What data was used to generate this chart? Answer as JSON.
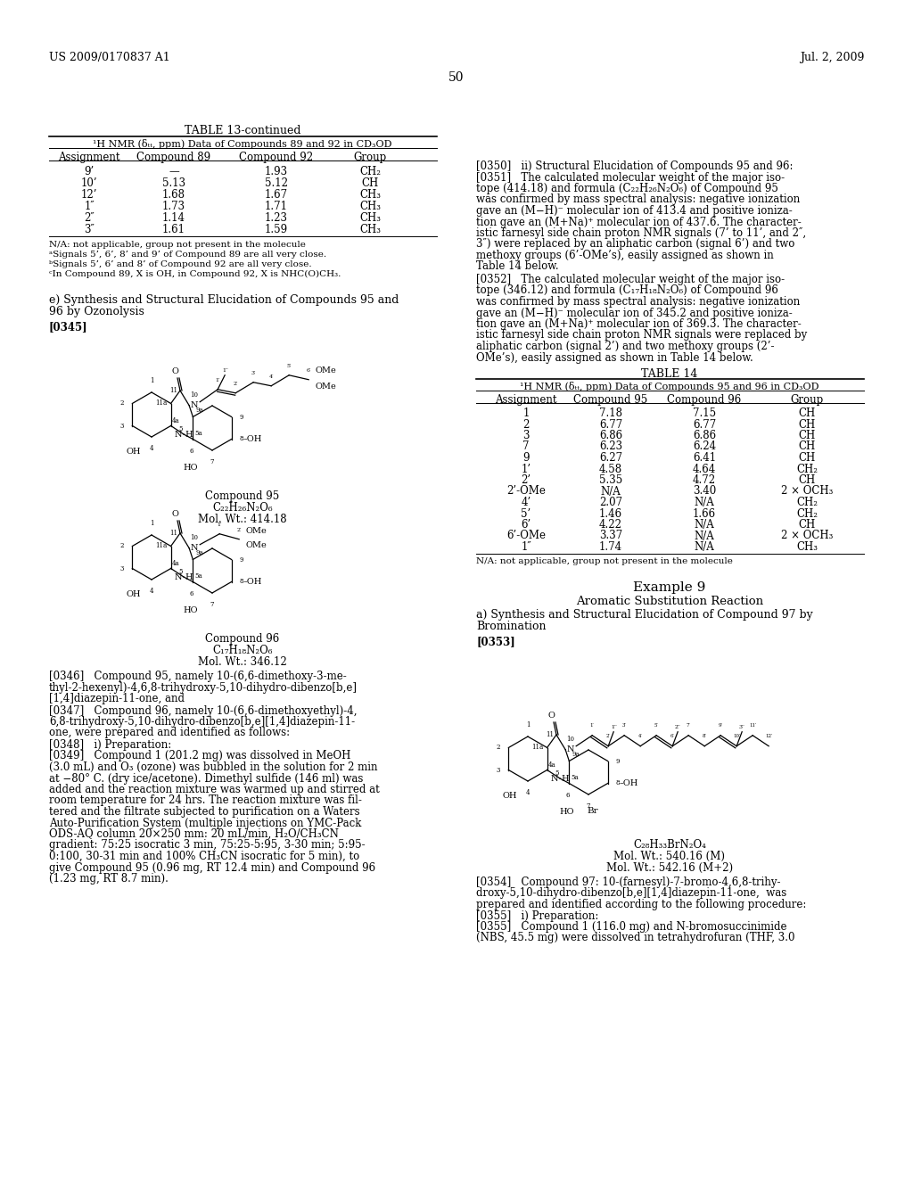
{
  "page_header_left": "US 2009/0170837 A1",
  "page_header_right": "Jul. 2, 2009",
  "page_number": "50",
  "background_color": "#ffffff",
  "table13_title": "TABLE 13-continued",
  "table13_subtitle": "¹H NMR (δₜₜ, ppm) Data of Compounds 89 and 92 in CD₃OD",
  "table13_headers": [
    "Assignment",
    "Compound 89",
    "Compound 92",
    "Group"
  ],
  "table13_rows": [
    [
      "9’",
      "—",
      "1.93",
      "CH₂"
    ],
    [
      "10’",
      "5.13",
      "5.12",
      "CH"
    ],
    [
      "12’",
      "1.68",
      "1.67",
      "CH₃"
    ],
    [
      "1″",
      "1.73",
      "1.71",
      "CH₃"
    ],
    [
      "2″",
      "1.14",
      "1.23",
      "CH₃"
    ],
    [
      "3″",
      "1.61",
      "1.59",
      "CH₃"
    ]
  ],
  "table13_footnotes": [
    "N/A: not applicable, group not present in the molecule",
    "ᵃSignals 5’, 6’, 8’ and 9’ of Compound 89 are all very close.",
    "ᵇSignals 5’, 6’ and 8’ of Compound 92 are all very close.",
    "ᶜIn Compound 89, X is OH, in Compound 92, X is NHC(O)CH₃."
  ],
  "compound95_label": "Compound 95",
  "compound95_formula": "C₂₂H₂₆N₂O₆",
  "compound95_mw": "Mol. Wt.: 414.18",
  "compound96_label": "Compound 96",
  "compound96_formula": "C₁₇H₁₈N₂O₆",
  "compound96_mw": "Mol. Wt.: 346.12",
  "right_para0350": "[0350]   ii) Structural Elucidation of Compounds 95 and 96:",
  "right_para0351_lines": [
    "[0351]   The calculated molecular weight of the major iso-",
    "tope (414.18) and formula (C₂₂H₂₆N₂O₆) of Compound 95",
    "was confirmed by mass spectral analysis: negative ionization",
    "gave an (M−H)⁻ molecular ion of 413.4 and positive ioniza-",
    "tion gave an (M+Na)⁺ molecular ion of 437.6. The character-",
    "istic farnesyl side chain proton NMR signals (7’ to 11’, and 2″,",
    "3″) were replaced by an aliphatic carbon (signal 6’) and two",
    "methoxy groups (6’-OMe’s), easily assigned as shown in",
    "Table 14 below."
  ],
  "right_para0352_lines": [
    "[0352]   The calculated molecular weight of the major iso-",
    "tope (346.12) and formula (C₁₇H₁₈N₂O₆) of Compound 96",
    "was confirmed by mass spectral analysis: negative ionization",
    "gave an (M−H)⁻ molecular ion of 345.2 and positive ioniza-",
    "tion gave an (M+Na)⁺ molecular ion of 369.3. The character-",
    "istic farnesyl side chain proton NMR signals were replaced by",
    "aliphatic carbon (signal 2’) and two methoxy groups (2’-",
    "OMe’s), easily assigned as shown in Table 14 below."
  ],
  "table14_title": "TABLE 14",
  "table14_subtitle": "¹H NMR (δₜₜ, ppm) Data of Compounds 95 and 96 in CD₃OD",
  "table14_headers": [
    "Assignment",
    "Compound 95",
    "Compound 96",
    "Group"
  ],
  "table14_rows": [
    [
      "1",
      "7.18",
      "7.15",
      "CH"
    ],
    [
      "2",
      "6.77",
      "6.77",
      "CH"
    ],
    [
      "3",
      "6.86",
      "6.86",
      "CH"
    ],
    [
      "7",
      "6.23",
      "6.24",
      "CH"
    ],
    [
      "9",
      "6.27",
      "6.41",
      "CH"
    ],
    [
      "1’",
      "4.58",
      "4.64",
      "CH₂"
    ],
    [
      "2’",
      "5.35",
      "4.72",
      "CH"
    ],
    [
      "2’-OMe",
      "N/A",
      "3.40",
      "2 × OCH₃"
    ],
    [
      "4’",
      "2.07",
      "N/A",
      "CH₂"
    ],
    [
      "5’",
      "1.46",
      "1.66",
      "CH₂"
    ],
    [
      "6’",
      "4.22",
      "N/A",
      "CH"
    ],
    [
      "6’-OMe",
      "3.37",
      "N/A",
      "2 × OCH₃"
    ],
    [
      "1″",
      "1.74",
      "N/A",
      "CH₃"
    ]
  ],
  "table14_footnote": "N/A: not applicable, group not present in the molecule",
  "example9_heading": "Example 9",
  "example9_subheading": "Aromatic Substitution Reaction",
  "example9_sub_lines": [
    "a) Synthesis and Structural Elucidation of Compound 97 by",
    "Bromination"
  ],
  "compound97_formula": "C₂₈H₃₃BrN₂O₄",
  "compound97_mw1": "Mol. Wt.: 540.16 (M)",
  "compound97_mw2": "Mol. Wt.: 542.16 (M+2)",
  "right_para0354_lines": [
    "[0354]   Compound 97: 10-(farnesyl)-7-bromo-4,6,8-trihy-",
    "droxy-5,10-dihydro-dibenzo[b,e][1,4]diazepin-11-one,  was",
    "prepared and identified according to the following procedure:"
  ],
  "right_para0355_lines": [
    "[0355]   i) Preparation:",
    "[0355]   Compound 1 (116.0 mg) and N-bromosuccinimide",
    "(NBS, 45.5 mg) were dissolved in tetrahydrofuran (THF, 3.0"
  ],
  "left_para0346_lines": [
    "[0346]   Compound 95, namely 10-(6,6-dimethoxy-3-me-",
    "thyl-2-hexenyl)-4,6,8-trihydroxy-5,10-dihydro-dibenzo[b,e]",
    "[1,4]diazepin-11-one, and"
  ],
  "left_para0347_lines": [
    "[0347]   Compound 96, namely 10-(6,6-dimethoxyethyl)-4,",
    "6,8-trihydroxy-5,10-dihydro-dibenzo[b,e][1,4]diazepin-11-",
    "one, were prepared and identified as follows:"
  ],
  "left_para0349_lines": [
    "[0349]   Compound 1 (201.2 mg) was dissolved in MeOH",
    "(3.0 mL) and O₃ (ozone) was bubbled in the solution for 2 min",
    "at −80° C. (dry ice/acetone). Dimethyl sulfide (146 ml) was",
    "added and the reaction mixture was warmed up and stirred at",
    "room temperature for 24 hrs. The reaction mixture was fil-",
    "tered and the filtrate subjected to purification on a Waters",
    "Auto-Purification System (multiple injections on YMC-Pack",
    "ODS-AQ column 20×250 mm: 20 mL/min, H₂O/CH₃CN",
    "gradient: 75:25 isocratic 3 min, 75:25-5:95, 3-30 min; 5:95-",
    "0:100, 30-31 min and 100% CH₃CN isocratic for 5 min), to",
    "give Compound 95 (0.96 mg, RT 12.4 min) and Compound 96",
    "(1.23 mg, RT 8.7 min)."
  ]
}
